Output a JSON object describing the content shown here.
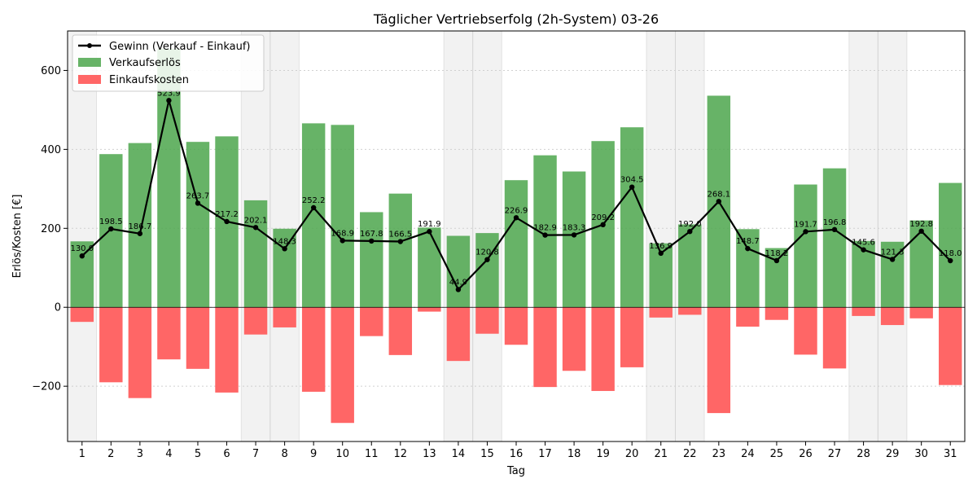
{
  "chart_data": {
    "type": "bar",
    "title": "Täglicher Vertriebserfolg (2h-System) 03-26",
    "xlabel": "Tag",
    "ylabel": "Erlös/Kosten [€]",
    "ylim": [
      -340,
      700
    ],
    "yticks": [
      -200,
      0,
      200,
      400,
      600
    ],
    "grid": "horizontal dotted",
    "legend_position": "top-left",
    "categories": [
      "1",
      "2",
      "3",
      "4",
      "5",
      "6",
      "7",
      "8",
      "9",
      "10",
      "11",
      "12",
      "13",
      "14",
      "15",
      "16",
      "17",
      "18",
      "19",
      "20",
      "21",
      "22",
      "23",
      "24",
      "25",
      "26",
      "27",
      "28",
      "29",
      "30",
      "31"
    ],
    "weekend_days": [
      1,
      7,
      8,
      14,
      15,
      21,
      22,
      28,
      29
    ],
    "series": [
      {
        "name": "Gewinn (Verkauf - Einkauf)",
        "type": "line",
        "color": "#000000",
        "values": [
          130.0,
          198.5,
          186.7,
          523.9,
          263.7,
          217.2,
          202.1,
          148.3,
          252.2,
          168.9,
          167.8,
          166.5,
          191.9,
          44.9,
          120.8,
          226.9,
          182.9,
          183.3,
          209.2,
          304.5,
          136.9,
          192.0,
          268.1,
          148.7,
          118.2,
          191.7,
          196.8,
          145.6,
          121.3,
          192.8,
          118.0
        ],
        "labels": [
          "130.0",
          "198.5",
          "186.7",
          "523.9",
          "263.7",
          "217.2",
          "202.1",
          "148.3",
          "252.2",
          "168.9",
          "167.8",
          "166.5",
          "191.9",
          "44.9",
          "120.8",
          "226.9",
          "182.9",
          "183.3",
          "209.2",
          "304.5",
          "136.9",
          "192.0",
          "268.1",
          "148.7",
          "118.2",
          "191.7",
          "196.8",
          "145.6",
          "121.3",
          "192.8",
          "118.0"
        ]
      },
      {
        "name": "Verkaufserlös",
        "type": "bar",
        "color": "#4ca64c",
        "values": [
          167,
          388,
          416,
          655,
          419,
          433,
          271,
          199,
          466,
          462,
          241,
          288,
          202,
          181,
          188,
          322,
          385,
          344,
          421,
          456,
          162,
          210,
          536,
          198,
          150,
          311,
          352,
          168,
          166,
          220,
          315
        ]
      },
      {
        "name": "Einkaufskosten",
        "type": "bar",
        "color": "#ff6666",
        "values": [
          -37,
          -190,
          -230,
          -132,
          -156,
          -216,
          -69,
          -51,
          -214,
          -293,
          -73,
          -121,
          -11,
          -136,
          -67,
          -95,
          -202,
          -161,
          -212,
          -152,
          -26,
          -19,
          -268,
          -49,
          -32,
          -120,
          -155,
          -22,
          -45,
          -28,
          -197
        ]
      }
    ]
  }
}
